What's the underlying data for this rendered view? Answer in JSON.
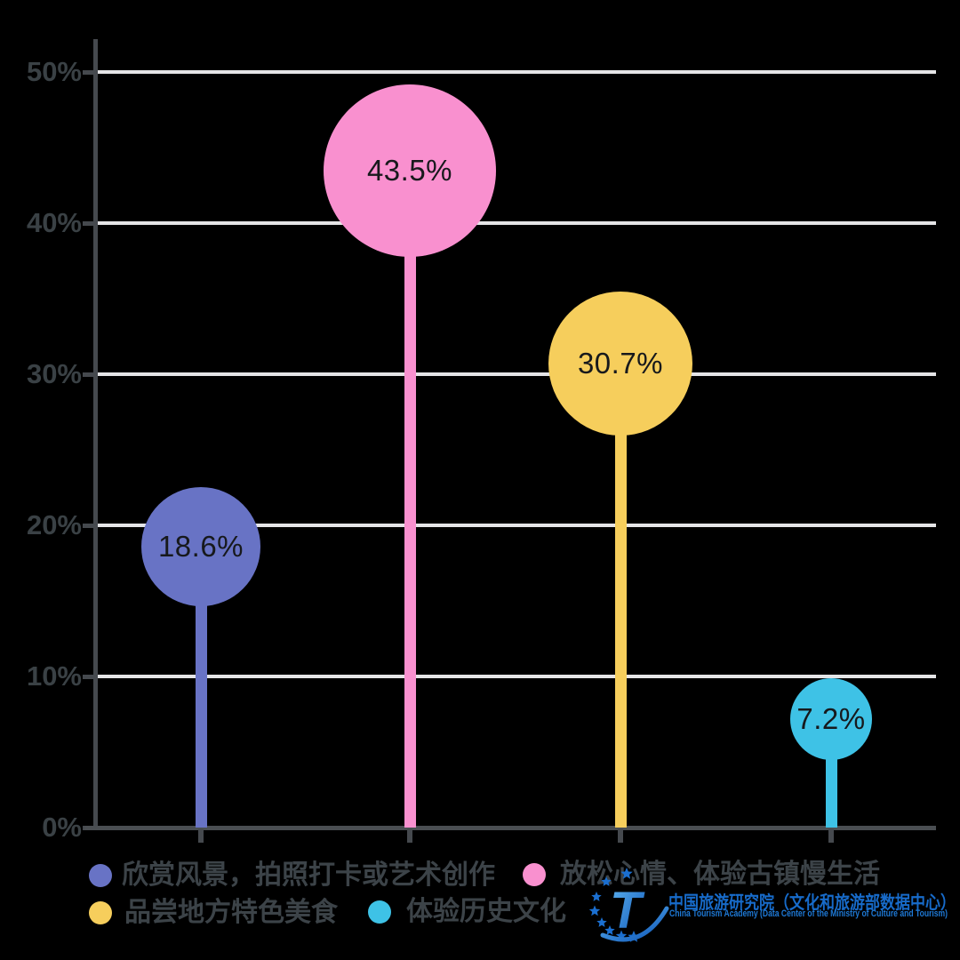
{
  "chart_data": {
    "type": "lollipop",
    "title": "",
    "xlabel": "",
    "ylabel": "",
    "categories": [
      "欣赏风景，拍照打卡或艺术创作",
      "放松心情、体验古镇慢生活",
      "品尝地方特色美食",
      "体验历史文化"
    ],
    "values": [
      18.6,
      43.5,
      30.7,
      7.2
    ],
    "labels": [
      "18.6%",
      "43.5%",
      "30.7%",
      "7.2%"
    ],
    "colors": [
      "#6873C5",
      "#F990CF",
      "#F6CE5C",
      "#3EC2E6"
    ],
    "bubble_radius": [
      67,
      97,
      81,
      46
    ],
    "x_centers": [
      226,
      461,
      698,
      935
    ],
    "ylim": [
      0,
      50
    ],
    "ytick_values": [
      50,
      40,
      30,
      20,
      10,
      0
    ],
    "yticks": [
      "50%",
      "40%",
      "30%",
      "20%",
      "10%",
      "0%"
    ],
    "grid": true,
    "legend_position": "bottom"
  },
  "legend": {
    "items": [
      {
        "label": "欣赏风景，拍照打卡或艺术创作",
        "color": "#6873C5"
      },
      {
        "label": "放松心情、体验古镇慢生活",
        "color": "#F990CF"
      },
      {
        "label": "品尝地方特色美食",
        "color": "#F6CE5C"
      },
      {
        "label": "体验历史文化",
        "color": "#3EC2E6"
      }
    ]
  },
  "branding": {
    "logo_letter": "T",
    "logo_text_cn": "中国旅游研究院（文化和旅游部数据中心）",
    "logo_text_en": "China Tourism Academy (Data Center of the Ministry of Culture and Tourism)",
    "logo_blue": "#176BCA"
  },
  "style_colors": {
    "axis": "#45494E",
    "gridline": "#E5E5E7",
    "ytick_text": "#3A4145",
    "bubble_text": "#17191C",
    "legend_text": "#3C4348",
    "background": "#000000"
  }
}
